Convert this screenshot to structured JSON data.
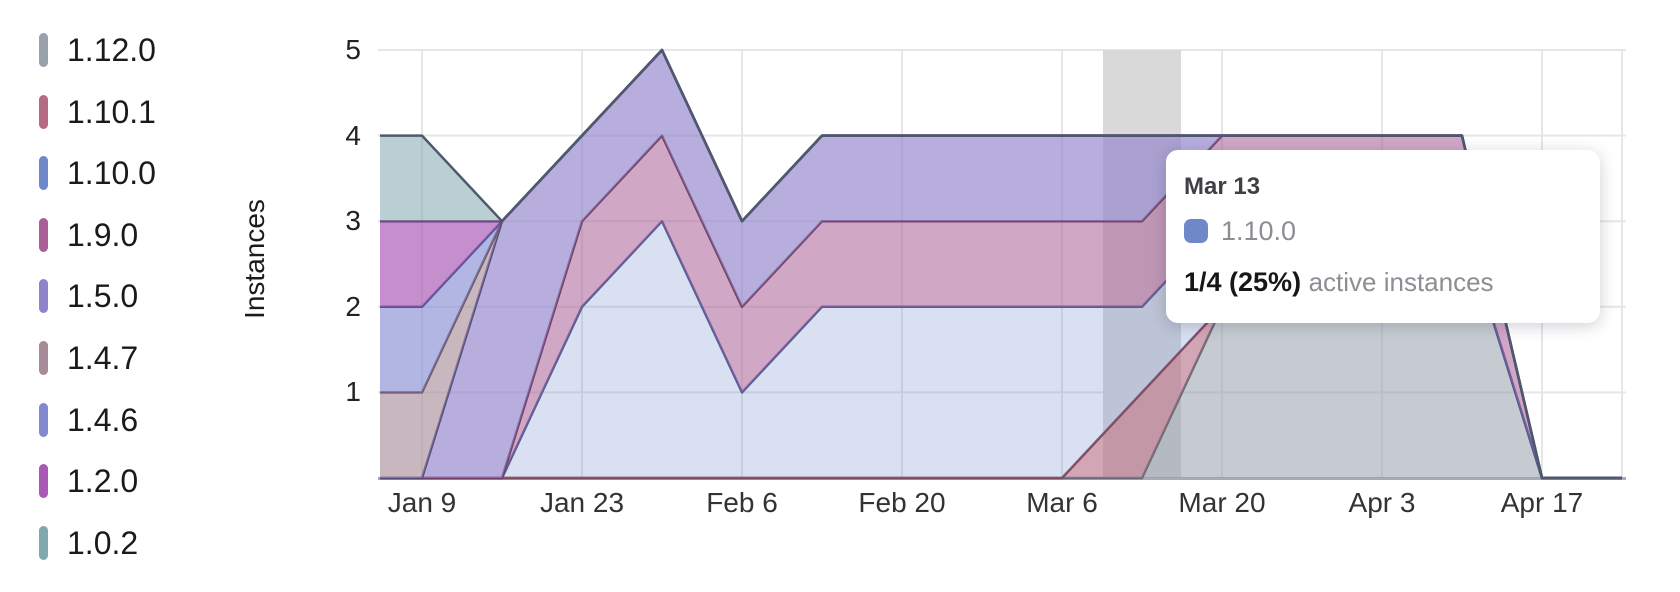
{
  "chart_data": {
    "type": "area",
    "stacked": true,
    "title": "",
    "ylabel": "Instances",
    "ylim": [
      0,
      5
    ],
    "y_ticks": [
      1,
      2,
      3,
      4,
      5
    ],
    "grid": true,
    "legend_position": "left",
    "highlight_column": "Mar 13",
    "x_tick_labels": [
      "Jan 9",
      "Jan 23",
      "Feb 6",
      "Feb 20",
      "Mar 6",
      "Mar 20",
      "Apr 3",
      "Apr 17"
    ],
    "dates": [
      "Jan 2",
      "Jan 9",
      "Jan 16",
      "Jan 23",
      "Jan 30",
      "Feb 6",
      "Feb 13",
      "Feb 20",
      "Feb 27",
      "Mar 6",
      "Mar 13",
      "Mar 20",
      "Mar 27",
      "Apr 3",
      "Apr 10",
      "Apr 17",
      "Apr 24"
    ],
    "series": [
      {
        "name": "1.12.0",
        "color": "#98a1ac",
        "stroke": "#636d7a",
        "fill_opacity": 0.55,
        "values": [
          0,
          0,
          0,
          0,
          0,
          0,
          0,
          0,
          0,
          0,
          0,
          2,
          2,
          2,
          3,
          0,
          0
        ]
      },
      {
        "name": "1.10.1",
        "color": "#b56b84",
        "stroke": "#82495d",
        "fill_opacity": 0.6,
        "values": [
          0,
          0,
          0,
          0,
          0,
          0,
          0,
          0,
          0,
          0,
          1,
          0,
          0,
          0,
          0,
          0,
          0
        ]
      },
      {
        "name": "1.10.0",
        "color": "#6e88c9",
        "stroke": "#4f5f99",
        "fill_opacity": 0.26,
        "values": [
          0,
          0,
          0,
          2,
          3,
          1,
          2,
          2,
          2,
          2,
          1,
          1,
          1,
          1,
          0,
          0,
          0
        ]
      },
      {
        "name": "1.9.0",
        "color": "#ab5f97",
        "stroke": "#714061",
        "fill_opacity": 0.55,
        "values": [
          0,
          0,
          0,
          1,
          1,
          1,
          1,
          1,
          1,
          1,
          1,
          1,
          1,
          1,
          1,
          0,
          0
        ]
      },
      {
        "name": "1.5.0",
        "color": "#9083cb",
        "stroke": "#514d80",
        "fill_opacity": 0.65,
        "values": [
          0,
          0,
          3,
          1,
          1,
          1,
          1,
          1,
          1,
          1,
          1,
          0,
          0,
          0,
          0,
          0,
          0
        ]
      },
      {
        "name": "1.4.7",
        "color": "#a78b98",
        "stroke": "#6f5765",
        "fill_opacity": 0.62,
        "values": [
          1,
          1,
          0,
          0,
          0,
          0,
          0,
          0,
          0,
          0,
          0,
          0,
          0,
          0,
          0,
          0,
          0
        ]
      },
      {
        "name": "1.4.6",
        "color": "#8289d0",
        "stroke": "#4f5591",
        "fill_opacity": 0.62,
        "values": [
          1,
          1,
          0,
          0,
          0,
          0,
          0,
          0,
          0,
          0,
          0,
          0,
          0,
          0,
          0,
          0,
          0
        ]
      },
      {
        "name": "1.2.0",
        "color": "#a958b6",
        "stroke": "#6f3a7a",
        "fill_opacity": 0.68,
        "values": [
          1,
          1,
          0,
          0,
          0,
          0,
          0,
          0,
          0,
          0,
          0,
          0,
          0,
          0,
          0,
          0,
          0
        ]
      },
      {
        "name": "1.0.2",
        "color": "#81a8ae",
        "stroke": "#4d5a6e",
        "fill_opacity": 0.55,
        "values": [
          1,
          1,
          0,
          0,
          0,
          0,
          0,
          0,
          0,
          0,
          0,
          0,
          0,
          0,
          0,
          0,
          0
        ]
      }
    ]
  },
  "tooltip": {
    "date": "Mar 13",
    "series": "1.10.0",
    "swatch_color": "#6f88c7",
    "value": "1/4 (25%)",
    "suffix": "active instances"
  },
  "colors": {
    "highlight_band": "#d9d9d9",
    "axis_line": "#a7abb3",
    "gridline": "#e6e6e6"
  }
}
